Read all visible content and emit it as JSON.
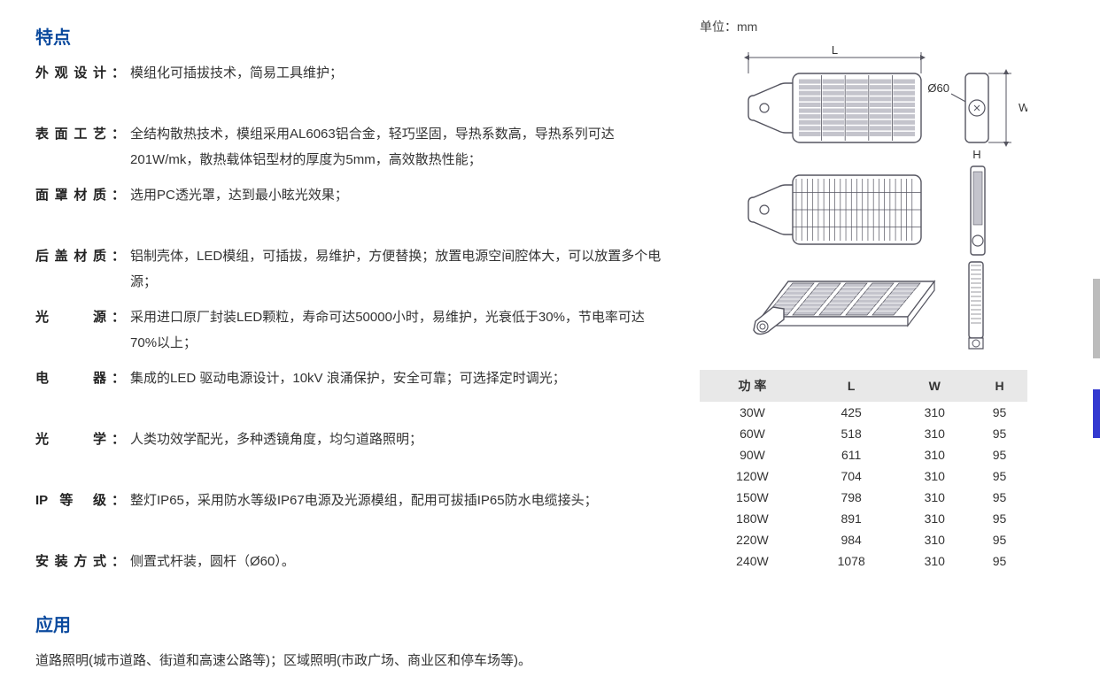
{
  "features": {
    "title": "特点",
    "rows": [
      {
        "label": "外观设计",
        "value": "模组化可插拔技术，简易工具维护；"
      },
      {
        "label": "表面工艺",
        "value": "全结构散热技术，模组采用AL6063铝合金，轻巧坚固，导热系数高，导热系列可达201W/mk，散热载体铝型材的厚度为5mm，高效散热性能；"
      },
      {
        "label": "面罩材质",
        "value": "选用PC透光罩，达到最小眩光效果；"
      },
      {
        "label": "后盖材质",
        "value": "铝制壳体，LED模组，可插拔，易维护，方便替换；放置电源空间腔体大，可以放置多个电源；"
      },
      {
        "label": "光源",
        "value": "采用进口原厂封装LED颗粒，寿命可达50000小时，易维护，光衰低于30%，节电率可达70%以上；"
      },
      {
        "label": "电器",
        "value": "集成的LED 驱动电源设计，10kV 浪涌保护，安全可靠；可选择定时调光；"
      },
      {
        "label": "光学",
        "value": "人类功效学配光，多种透镜角度，均匀道路照明；"
      },
      {
        "label": "IP 等 级",
        "value": "整灯IP65，采用防水等级IP67电源及光源模组，配用可拔插IP65防水电缆接头；"
      },
      {
        "label": "安装方式",
        "value": "侧置式杆装，圆杆（Ø60）。"
      }
    ]
  },
  "application": {
    "title": "应用",
    "text": "道路照明(城市道路、街道和高速公路等)；区域照明(市政广场、商业区和停车场等)。"
  },
  "diagram": {
    "unit_note": "单位：mm",
    "labels": {
      "L": "L",
      "W": "W",
      "H": "H",
      "diameter": "Ø60"
    },
    "stroke": "#555560",
    "module_fill": "#c4c4cc"
  },
  "dim_table": {
    "headers": [
      "功 率",
      "L",
      "W",
      "H"
    ],
    "rows": [
      [
        "30W",
        "425",
        "310",
        "95"
      ],
      [
        "60W",
        "518",
        "310",
        "95"
      ],
      [
        "90W",
        "611",
        "310",
        "95"
      ],
      [
        "120W",
        "704",
        "310",
        "95"
      ],
      [
        "150W",
        "798",
        "310",
        "95"
      ],
      [
        "180W",
        "891",
        "310",
        "95"
      ],
      [
        "220W",
        "984",
        "310",
        "95"
      ],
      [
        "240W",
        "1078",
        "310",
        "95"
      ]
    ]
  },
  "colors": {
    "heading": "#0b4a9e",
    "text": "#333333",
    "table_header_bg": "#e8e8e8",
    "side_tab_gray": "#bcbcbc",
    "side_tab_blue": "#3339d0"
  }
}
